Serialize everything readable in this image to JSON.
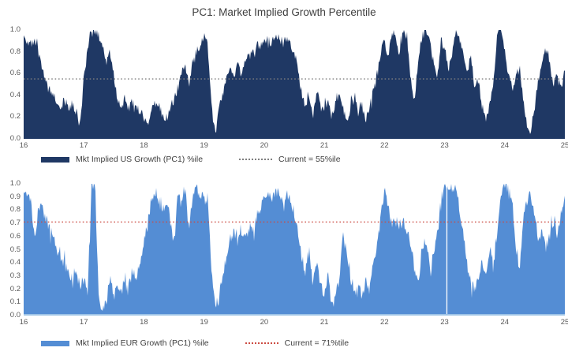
{
  "title": "PC1: Market Implied Growth Percentile",
  "chart_data": [
    {
      "type": "area",
      "name": "us",
      "series_label": "Mkt Implied US Growth (PC1) %ile",
      "current_label": "Current = 55%ile",
      "current_value": 0.55,
      "fill_color": "#1f3864",
      "baseline_color": "#1f3864",
      "current_line_color": "#7f7f7f",
      "x_range": [
        16,
        25
      ],
      "y_range": [
        0,
        1
      ],
      "x_ticks": [
        "16",
        "17",
        "18",
        "19",
        "20",
        "21",
        "22",
        "23",
        "24",
        "25"
      ],
      "y_ticks": [
        "1.0",
        "0.8",
        "0.6",
        "0.4",
        "0.2",
        "0.0"
      ],
      "x_step": 0.0625,
      "values": [
        0.95,
        0.9,
        0.86,
        0.88,
        0.78,
        0.62,
        0.5,
        0.44,
        0.4,
        0.34,
        0.3,
        0.35,
        0.28,
        0.32,
        0.25,
        0.12,
        0.55,
        0.8,
        0.97,
        1.0,
        0.95,
        0.85,
        0.72,
        0.8,
        0.58,
        0.35,
        0.3,
        0.38,
        0.28,
        0.35,
        0.3,
        0.25,
        0.22,
        0.12,
        0.25,
        0.32,
        0.3,
        0.22,
        0.18,
        0.28,
        0.35,
        0.45,
        0.62,
        0.68,
        0.48,
        0.72,
        0.8,
        0.88,
        0.95,
        0.85,
        0.3,
        0.02,
        0.28,
        0.42,
        0.55,
        0.65,
        0.6,
        0.68,
        0.58,
        0.72,
        0.75,
        0.8,
        0.85,
        0.88,
        0.9,
        0.92,
        0.88,
        0.95,
        0.92,
        0.88,
        0.92,
        0.85,
        0.8,
        0.62,
        0.42,
        0.28,
        0.38,
        0.22,
        0.45,
        0.3,
        0.25,
        0.38,
        0.18,
        0.32,
        0.45,
        0.28,
        0.15,
        0.3,
        0.42,
        0.22,
        0.35,
        0.18,
        0.28,
        0.45,
        0.6,
        0.78,
        0.9,
        0.75,
        1.0,
        0.92,
        0.78,
        1.0,
        0.9,
        0.55,
        0.35,
        0.75,
        0.95,
        1.0,
        0.88,
        0.72,
        0.55,
        0.9,
        0.85,
        0.62,
        0.8,
        1.0,
        0.9,
        0.78,
        0.62,
        0.75,
        0.45,
        0.55,
        0.3,
        0.15,
        0.32,
        0.55,
        0.95,
        1.0,
        0.8,
        0.58,
        0.45,
        0.6,
        0.65,
        0.35,
        0.1,
        0.05,
        0.3,
        0.55,
        0.75,
        0.85,
        0.68,
        0.5,
        0.6,
        0.45,
        0.62
      ]
    },
    {
      "type": "area",
      "name": "eur",
      "series_label": "Mkt Implied EUR Growth (PC1) %ile",
      "current_label": "Current = 71%tile",
      "current_value": 0.71,
      "fill_color": "#548dd4",
      "baseline_color": "#9dc3e6",
      "current_line_color": "#cc4b42",
      "x_range": [
        16,
        25
      ],
      "y_range": [
        0,
        1
      ],
      "x_ticks": [
        "16",
        "17",
        "18",
        "19",
        "20",
        "21",
        "22",
        "23",
        "24",
        "25"
      ],
      "y_ticks": [
        "1.0",
        "0.9",
        "0.8",
        "0.7",
        "0.6",
        "0.5",
        "0.4",
        "0.3",
        "0.2",
        "0.1",
        "0.0"
      ],
      "x_step": 0.0625,
      "gap_year": 23.03,
      "values": [
        0.97,
        0.93,
        0.88,
        0.55,
        0.85,
        0.8,
        0.72,
        0.65,
        0.58,
        0.5,
        0.44,
        0.38,
        0.3,
        0.24,
        0.32,
        0.22,
        0.28,
        0.15,
        0.97,
        1.0,
        0.08,
        0.04,
        0.1,
        0.3,
        0.12,
        0.22,
        0.15,
        0.32,
        0.22,
        0.35,
        0.28,
        0.4,
        0.55,
        0.72,
        0.88,
        0.95,
        0.86,
        0.8,
        0.9,
        0.72,
        0.55,
        0.92,
        0.85,
        0.95,
        0.65,
        0.9,
        0.97,
        0.92,
        0.88,
        0.9,
        0.35,
        0.05,
        0.15,
        0.3,
        0.45,
        0.58,
        0.65,
        0.55,
        0.62,
        0.58,
        0.68,
        0.62,
        0.75,
        0.82,
        0.9,
        0.92,
        0.88,
        0.95,
        0.92,
        0.85,
        0.92,
        0.88,
        0.78,
        0.62,
        0.45,
        0.35,
        0.48,
        0.28,
        0.38,
        0.22,
        0.15,
        0.3,
        0.06,
        0.15,
        0.28,
        0.62,
        0.45,
        0.28,
        0.15,
        0.25,
        0.12,
        0.28,
        0.2,
        0.38,
        0.52,
        0.75,
        0.95,
        0.82,
        0.7,
        0.75,
        0.68,
        0.72,
        0.62,
        0.55,
        0.35,
        0.25,
        0.52,
        0.58,
        0.35,
        0.45,
        0.65,
        0.85,
        1.0,
        0.97,
        0.9,
        1.0,
        0.8,
        0.62,
        0.38,
        0.25,
        0.18,
        0.28,
        0.4,
        0.3,
        0.52,
        0.38,
        0.6,
        0.92,
        1.0,
        0.95,
        0.88,
        0.5,
        0.35,
        0.78,
        0.88,
        0.92,
        0.78,
        0.58,
        0.65,
        0.52,
        0.6,
        0.72,
        0.62,
        0.8,
        0.88
      ]
    }
  ]
}
